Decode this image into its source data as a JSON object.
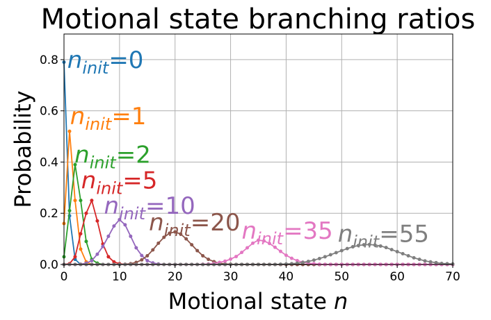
{
  "chart_data": {
    "type": "line",
    "title": "Motional state branching ratios",
    "xlabel": "Motional state",
    "xlabel_symbol": "n",
    "ylabel": "Probability",
    "xlim": [
      0,
      70
    ],
    "ylim": [
      0,
      0.9
    ],
    "grid": true,
    "x_ticks": [
      0,
      10,
      20,
      30,
      40,
      50,
      60,
      70
    ],
    "x_tick_labels": [
      "0",
      "10",
      "20",
      "30",
      "40",
      "50",
      "60",
      "70"
    ],
    "y_ticks": [
      0.0,
      0.2,
      0.4,
      0.6,
      0.8
    ],
    "y_tick_labels": [
      "0.0",
      "0.2",
      "0.4",
      "0.6",
      "0.8"
    ],
    "x": [
      0,
      1,
      2,
      3,
      4,
      5,
      6,
      7,
      8,
      9,
      10,
      11,
      12,
      13,
      14,
      15,
      16,
      17,
      18,
      19,
      20,
      21,
      22,
      23,
      24,
      25,
      26,
      27,
      28,
      29,
      30,
      31,
      32,
      33,
      34,
      35,
      36,
      37,
      38,
      39,
      40,
      41,
      42,
      43,
      44,
      45,
      46,
      47,
      48,
      49,
      50,
      51,
      52,
      53,
      54,
      55,
      56,
      57,
      58,
      59,
      60,
      61,
      62,
      63,
      64,
      65,
      66,
      67,
      68,
      69,
      70
    ],
    "series": [
      {
        "color": "#1f77b4",
        "values": [
          0.79,
          0.19,
          0.02,
          0.0,
          0.0,
          0.0,
          0.0,
          0.0,
          0.0,
          0.0,
          0.0,
          0.0,
          0.0,
          0.0,
          0.0,
          0.0,
          0.0,
          0.0,
          0.0,
          0.0,
          0.0,
          0.0,
          0.0,
          0.0,
          0.0,
          0.0,
          0.0,
          0.0,
          0.0,
          0.0,
          0.0,
          0.0,
          0.0,
          0.0,
          0.0,
          0.0,
          0.0,
          0.0,
          0.0,
          0.0,
          0.0,
          0.0,
          0.0,
          0.0,
          0.0,
          0.0,
          0.0,
          0.0,
          0.0,
          0.0,
          0.0,
          0.0,
          0.0,
          0.0,
          0.0,
          0.0,
          0.0,
          0.0,
          0.0,
          0.0,
          0.0,
          0.0,
          0.0,
          0.0,
          0.0,
          0.0,
          0.0,
          0.0,
          0.0,
          0.0,
          0.0
        ]
      },
      {
        "color": "#ff7f0e",
        "values": [
          0.16,
          0.52,
          0.25,
          0.06,
          0.01,
          0.0,
          0.0,
          0.0,
          0.0,
          0.0,
          0.0,
          0.0,
          0.0,
          0.0,
          0.0,
          0.0,
          0.0,
          0.0,
          0.0,
          0.0,
          0.0,
          0.0,
          0.0,
          0.0,
          0.0,
          0.0,
          0.0,
          0.0,
          0.0,
          0.0,
          0.0,
          0.0,
          0.0,
          0.0,
          0.0,
          0.0,
          0.0,
          0.0,
          0.0,
          0.0,
          0.0,
          0.0,
          0.0,
          0.0,
          0.0,
          0.0,
          0.0,
          0.0,
          0.0,
          0.0,
          0.0,
          0.0,
          0.0,
          0.0,
          0.0,
          0.0,
          0.0,
          0.0,
          0.0,
          0.0,
          0.0,
          0.0,
          0.0,
          0.0,
          0.0,
          0.0,
          0.0,
          0.0,
          0.0,
          0.0,
          0.0
        ]
      },
      {
        "color": "#2ca02c",
        "values": [
          0.03,
          0.21,
          0.39,
          0.25,
          0.09,
          0.02,
          0.005,
          0.0,
          0.0,
          0.0,
          0.0,
          0.0,
          0.0,
          0.0,
          0.0,
          0.0,
          0.0,
          0.0,
          0.0,
          0.0,
          0.0,
          0.0,
          0.0,
          0.0,
          0.0,
          0.0,
          0.0,
          0.0,
          0.0,
          0.0,
          0.0,
          0.0,
          0.0,
          0.0,
          0.0,
          0.0,
          0.0,
          0.0,
          0.0,
          0.0,
          0.0,
          0.0,
          0.0,
          0.0,
          0.0,
          0.0,
          0.0,
          0.0,
          0.0,
          0.0,
          0.0,
          0.0,
          0.0,
          0.0,
          0.0,
          0.0,
          0.0,
          0.0,
          0.0,
          0.0,
          0.0,
          0.0,
          0.0,
          0.0,
          0.0,
          0.0,
          0.0,
          0.0,
          0.0,
          0.0,
          0.0
        ]
      },
      {
        "color": "#d62728",
        "values": [
          0.0,
          0.003,
          0.03,
          0.12,
          0.2,
          0.25,
          0.17,
          0.08,
          0.03,
          0.01,
          0.003,
          0.0,
          0.0,
          0.0,
          0.0,
          0.0,
          0.0,
          0.0,
          0.0,
          0.0,
          0.0,
          0.0,
          0.0,
          0.0,
          0.0,
          0.0,
          0.0,
          0.0,
          0.0,
          0.0,
          0.0,
          0.0,
          0.0,
          0.0,
          0.0,
          0.0,
          0.0,
          0.0,
          0.0,
          0.0,
          0.0,
          0.0,
          0.0,
          0.0,
          0.0,
          0.0,
          0.0,
          0.0,
          0.0,
          0.0,
          0.0,
          0.0,
          0.0,
          0.0,
          0.0,
          0.0,
          0.0,
          0.0,
          0.0,
          0.0,
          0.0,
          0.0,
          0.0,
          0.0,
          0.0,
          0.0,
          0.0,
          0.0,
          0.0,
          0.0,
          0.0
        ]
      },
      {
        "color": "#9467bd",
        "values": [
          0.0,
          0.0,
          0.0,
          0.001,
          0.005,
          0.015,
          0.04,
          0.07,
          0.11,
          0.15,
          0.175,
          0.155,
          0.11,
          0.065,
          0.035,
          0.015,
          0.006,
          0.002,
          0.0,
          0.0,
          0.0,
          0.0,
          0.0,
          0.0,
          0.0,
          0.0,
          0.0,
          0.0,
          0.0,
          0.0,
          0.0,
          0.0,
          0.0,
          0.0,
          0.0,
          0.0,
          0.0,
          0.0,
          0.0,
          0.0,
          0.0,
          0.0,
          0.0,
          0.0,
          0.0,
          0.0,
          0.0,
          0.0,
          0.0,
          0.0,
          0.0,
          0.0,
          0.0,
          0.0,
          0.0,
          0.0,
          0.0,
          0.0,
          0.0,
          0.0,
          0.0,
          0.0,
          0.0,
          0.0,
          0.0,
          0.0,
          0.0,
          0.0,
          0.0,
          0.0,
          0.0
        ]
      },
      {
        "color": "#8c564b",
        "values": [
          0.0,
          0.0,
          0.0,
          0.0,
          0.0,
          0.0,
          0.0,
          0.0,
          0.0,
          0.0,
          0.0,
          0.001,
          0.003,
          0.008,
          0.018,
          0.034,
          0.057,
          0.083,
          0.106,
          0.122,
          0.127,
          0.119,
          0.1,
          0.077,
          0.054,
          0.034,
          0.02,
          0.011,
          0.005,
          0.002,
          0.001,
          0.0,
          0.0,
          0.0,
          0.0,
          0.0,
          0.0,
          0.0,
          0.0,
          0.0,
          0.0,
          0.0,
          0.0,
          0.0,
          0.0,
          0.0,
          0.0,
          0.0,
          0.0,
          0.0,
          0.0,
          0.0,
          0.0,
          0.0,
          0.0,
          0.0,
          0.0,
          0.0,
          0.0,
          0.0,
          0.0,
          0.0,
          0.0,
          0.0,
          0.0,
          0.0,
          0.0,
          0.0,
          0.0,
          0.0,
          0.0
        ]
      },
      {
        "color": "#e377c2",
        "values": [
          0.0,
          0.0,
          0.0,
          0.0,
          0.0,
          0.0,
          0.0,
          0.0,
          0.0,
          0.0,
          0.0,
          0.0,
          0.0,
          0.0,
          0.0,
          0.0,
          0.0,
          0.0,
          0.0,
          0.0,
          0.0,
          0.0,
          0.0,
          0.0,
          0.0,
          0.001,
          0.002,
          0.004,
          0.008,
          0.013,
          0.021,
          0.031,
          0.047,
          0.065,
          0.083,
          0.095,
          0.092,
          0.082,
          0.067,
          0.051,
          0.036,
          0.024,
          0.015,
          0.009,
          0.005,
          0.003,
          0.001,
          0.0,
          0.0,
          0.0,
          0.0,
          0.0,
          0.0,
          0.0,
          0.0,
          0.0,
          0.0,
          0.0,
          0.0,
          0.0,
          0.0,
          0.0,
          0.0,
          0.0,
          0.0,
          0.0,
          0.0,
          0.0,
          0.0,
          0.0,
          0.0
        ]
      },
      {
        "color": "#7f7f7f",
        "values": [
          0.0,
          0.0,
          0.0,
          0.0,
          0.0,
          0.0,
          0.0,
          0.0,
          0.0,
          0.0,
          0.0,
          0.0,
          0.0,
          0.0,
          0.0,
          0.0,
          0.0,
          0.0,
          0.0,
          0.0,
          0.0,
          0.0,
          0.0,
          0.0,
          0.0,
          0.0,
          0.0,
          0.0,
          0.0,
          0.0,
          0.0,
          0.0,
          0.0,
          0.0,
          0.0,
          0.0,
          0.0,
          0.0,
          0.0,
          0.001,
          0.002,
          0.003,
          0.005,
          0.008,
          0.012,
          0.017,
          0.023,
          0.03,
          0.038,
          0.046,
          0.054,
          0.062,
          0.069,
          0.074,
          0.077,
          0.078,
          0.076,
          0.072,
          0.066,
          0.058,
          0.05,
          0.042,
          0.034,
          0.026,
          0.02,
          0.014,
          0.01,
          0.007,
          0.004,
          0.003,
          0.002
        ]
      }
    ],
    "annotations": [
      {
        "text_main": "n",
        "text_sub": "init",
        "text_suffix": "=0",
        "color": "#1f77b4",
        "x": 0.6,
        "y": 0.8
      },
      {
        "text_main": "n",
        "text_sub": "init",
        "text_suffix": "=1",
        "color": "#ff7f0e",
        "x": 1.1,
        "y": 0.58
      },
      {
        "text_main": "n",
        "text_sub": "init",
        "text_suffix": "=2",
        "color": "#2ca02c",
        "x": 1.9,
        "y": 0.43
      },
      {
        "text_main": "n",
        "text_sub": "init",
        "text_suffix": "=5",
        "color": "#d62728",
        "x": 3.1,
        "y": 0.33
      },
      {
        "text_main": "n",
        "text_sub": "init",
        "text_suffix": "=10",
        "color": "#9467bd",
        "x": 7.2,
        "y": 0.23
      },
      {
        "text_main": "n",
        "text_sub": "init",
        "text_suffix": "=20",
        "color": "#8c564b",
        "x": 15.3,
        "y": 0.165
      },
      {
        "text_main": "n",
        "text_sub": "init",
        "text_suffix": "=35",
        "color": "#e377c2",
        "x": 32.0,
        "y": 0.133
      },
      {
        "text_main": "n",
        "text_sub": "init",
        "text_suffix": "=55",
        "color": "#7f7f7f",
        "x": 49.3,
        "y": 0.12
      }
    ]
  }
}
